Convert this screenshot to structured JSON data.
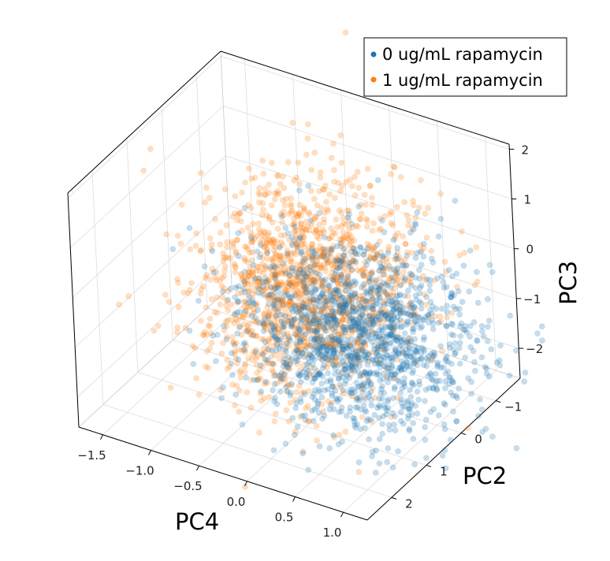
{
  "chart_data": {
    "type": "scatter",
    "projection": "3d",
    "grid": true,
    "legend_position": "top-right",
    "axes": {
      "x": {
        "label": "PC4",
        "ticks": [
          -1.5,
          -1.0,
          -0.5,
          0.0,
          0.5,
          1.0
        ],
        "tick_labels": [
          "−1.5",
          "−1.0",
          "−0.5",
          "0.0",
          "0.5",
          "1.0"
        ],
        "range": [
          -1.75,
          1.25
        ]
      },
      "y": {
        "label": "PC2",
        "ticks": [
          -1,
          0,
          1,
          2
        ],
        "tick_labels": [
          "−1",
          "0",
          "1",
          "2"
        ],
        "range": [
          -1.7,
          2.7
        ]
      },
      "z": {
        "label": "PC3",
        "ticks": [
          -2,
          -1,
          0,
          1,
          2
        ],
        "tick_labels": [
          "−2",
          "−1",
          "0",
          "1",
          "2"
        ],
        "range": [
          -2.6,
          2.1
        ]
      }
    },
    "series": [
      {
        "name": "0 ug/mL rapamycin",
        "color": "#1f77b4",
        "alpha": 0.25,
        "count": 1500,
        "distribution": {
          "center": [
            0.55,
            0.9,
            -0.5
          ],
          "spread": [
            0.55,
            0.75,
            0.75
          ]
        }
      },
      {
        "name": "1 ug/mL rapamycin",
        "color": "#ff7f0e",
        "alpha": 0.25,
        "count": 1500,
        "distribution": {
          "center": [
            -0.25,
            0.1,
            -0.6
          ],
          "spread": [
            0.5,
            0.9,
            0.85
          ]
        }
      }
    ]
  }
}
